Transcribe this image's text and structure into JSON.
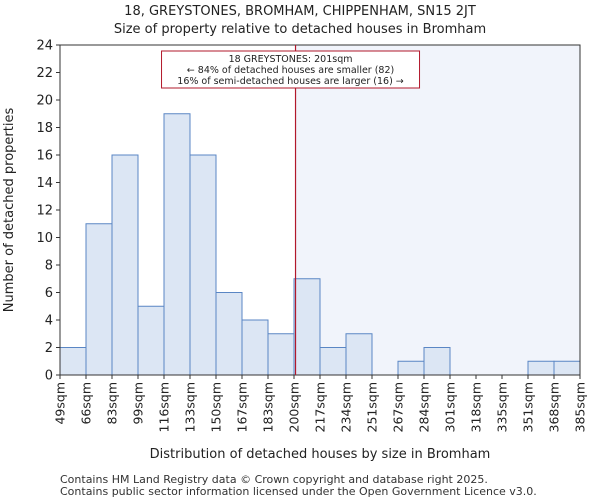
{
  "chart_data": {
    "type": "bar",
    "title": "18, GREYSTONES, BROMHAM, CHIPPENHAM, SN15 2JT",
    "subtitle": "Size of property relative to detached houses in Bromham",
    "xlabel": "Distribution of detached houses by size in Bromham",
    "ylabel": "Number of detached properties",
    "ylim": [
      0,
      24
    ],
    "yticks": [
      0,
      2,
      4,
      6,
      8,
      10,
      12,
      14,
      16,
      18,
      20,
      22,
      24
    ],
    "bin_edges": [
      "49sqm",
      "66sqm",
      "83sqm",
      "99sqm",
      "116sqm",
      "133sqm",
      "150sqm",
      "167sqm",
      "183sqm",
      "200sqm",
      "217sqm",
      "234sqm",
      "251sqm",
      "267sqm",
      "284sqm",
      "301sqm",
      "318sqm",
      "335sqm",
      "351sqm",
      "368sqm",
      "385sqm"
    ],
    "values": [
      2,
      11,
      16,
      5,
      19,
      16,
      6,
      4,
      3,
      7,
      2,
      3,
      0,
      1,
      2,
      0,
      0,
      0,
      1,
      1
    ],
    "marker_value_sqm": 201,
    "annotation": [
      "18 GREYSTONES: 201sqm",
      "← 84% of detached houses are smaller (82)",
      "16% of semi-detached houses are larger (16) →"
    ],
    "colors": {
      "bar_fill": "#dce6f4",
      "bar_stroke": "#5a86c4",
      "marker": "#b2182b",
      "highlight_bg": "#f1f4fb",
      "axis": "#333333"
    }
  },
  "footer": {
    "line1": "Contains HM Land Registry data © Crown copyright and database right 2025.",
    "line2": "Contains public sector information licensed under the Open Government Licence v3.0."
  }
}
